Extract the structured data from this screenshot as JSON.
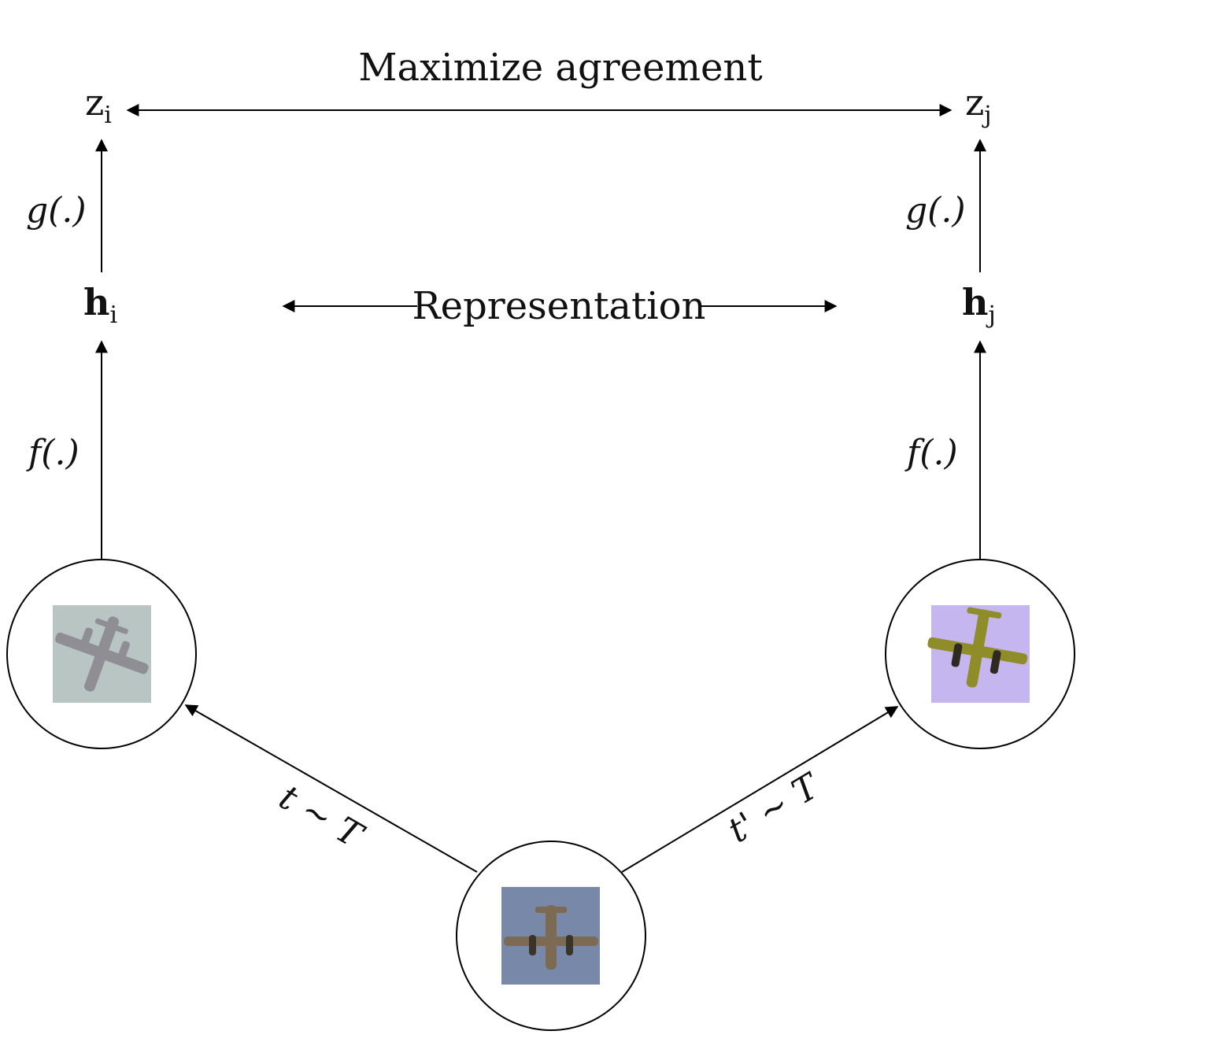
{
  "diagram": {
    "title": "Maximize  agreement",
    "representation_label": "Representation",
    "left": {
      "z_base": "z",
      "z_sub": "i",
      "h_base": "h",
      "h_sub": "i",
      "g_label": "g(.)",
      "f_label": "f(.)",
      "transform_label": "t ~ T",
      "image_icon": "airplane-grayscale-augmented"
    },
    "right": {
      "z_base": "z",
      "z_sub": "j",
      "h_base": "h",
      "h_sub": "j",
      "g_label": "g(.)",
      "f_label": "f(.)",
      "transform_label": "t' ~ T",
      "image_icon": "airplane-color-jittered"
    },
    "center": {
      "image_icon": "airplane-original"
    }
  },
  "colors": {
    "left_image_bg": "#b9c5c3",
    "left_plane": "#8e8e94",
    "right_image_bg": "#c6b6f0",
    "right_plane": "#8f8d2a",
    "center_image_bg": "#7888a8",
    "center_plane": "#7d6a52"
  }
}
